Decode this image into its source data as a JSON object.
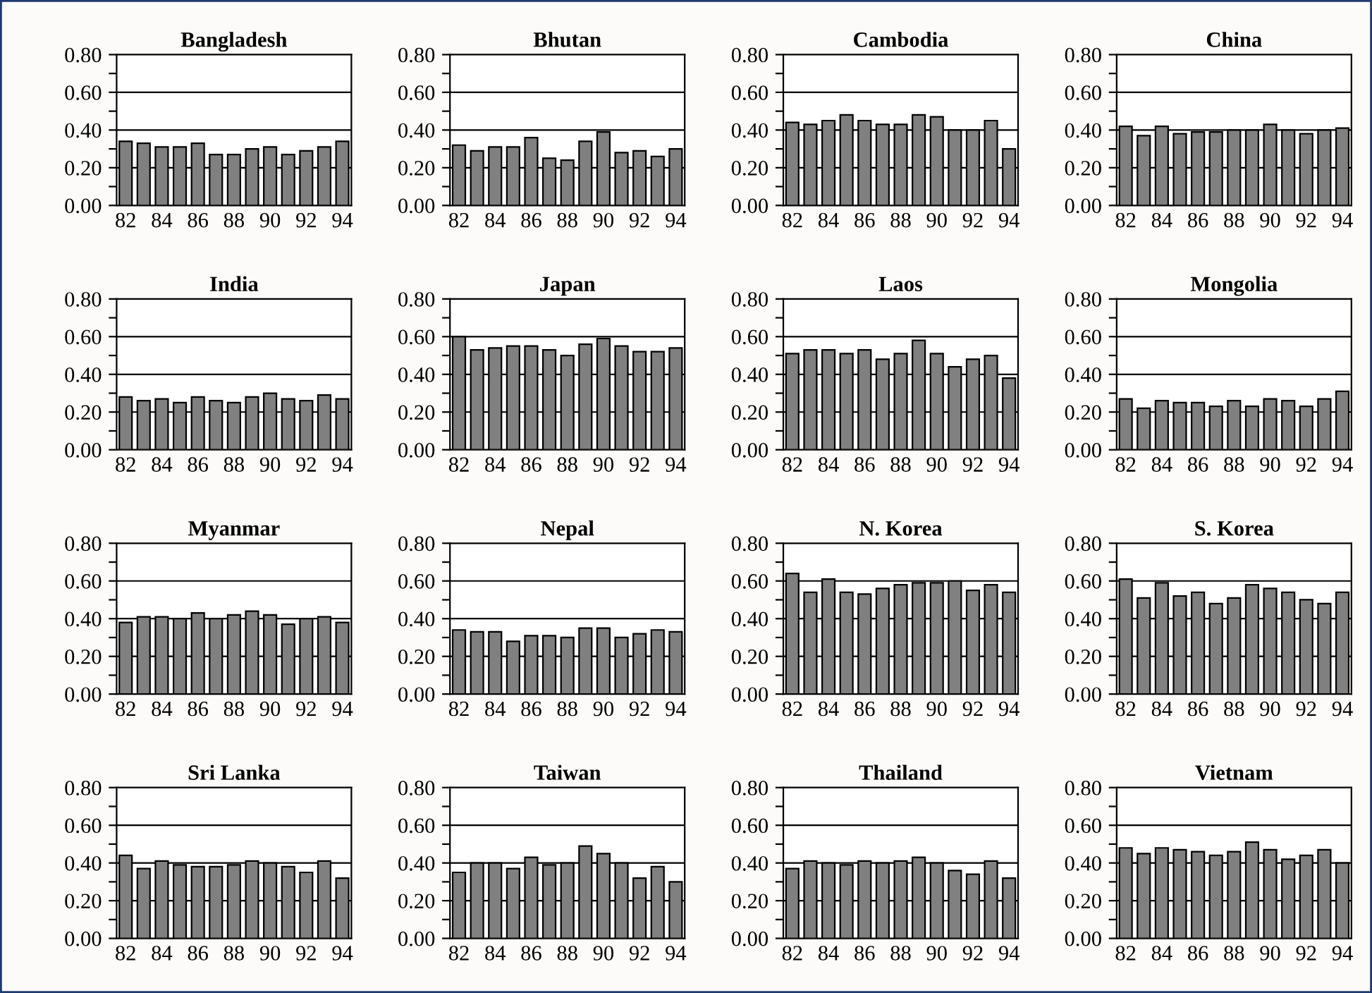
{
  "chart_data": [
    {
      "type": "bar",
      "title": "Bangladesh",
      "categories": [
        "82",
        null,
        "84",
        null,
        "86",
        null,
        "88",
        null,
        "90",
        null,
        "92",
        null,
        "94"
      ],
      "values": [
        0.34,
        0.33,
        0.31,
        0.31,
        0.33,
        0.27,
        0.27,
        0.3,
        0.31,
        0.27,
        0.29,
        0.31,
        0.34
      ],
      "color": "#808080",
      "ylim": [
        0,
        0.8
      ],
      "yticks": [
        {
          "value": 0,
          "label": "0.00"
        },
        {
          "value": 0.1,
          "label": null
        },
        {
          "value": 0.2,
          "label": "0.20"
        },
        {
          "value": 0.3,
          "label": null
        },
        {
          "value": 0.4,
          "label": "0.40"
        },
        {
          "value": 0.5,
          "label": null
        },
        {
          "value": 0.6,
          "label": "0.60"
        },
        {
          "value": 0.7,
          "label": null
        },
        {
          "value": 0.8,
          "label": "0.80"
        }
      ],
      "grid": "y"
    },
    {
      "type": "bar",
      "title": "Bhutan",
      "categories": [
        "82",
        null,
        "84",
        null,
        "86",
        null,
        "88",
        null,
        "90",
        null,
        "92",
        null,
        "94"
      ],
      "values": [
        0.32,
        0.29,
        0.31,
        0.31,
        0.36,
        0.25,
        0.24,
        0.34,
        0.39,
        0.28,
        0.29,
        0.26,
        0.3
      ],
      "color": "#808080",
      "ylim": [
        0,
        0.8
      ],
      "yticks": [
        {
          "value": 0,
          "label": "0.00"
        },
        {
          "value": 0.1,
          "label": null
        },
        {
          "value": 0.2,
          "label": "0.20"
        },
        {
          "value": 0.3,
          "label": null
        },
        {
          "value": 0.4,
          "label": "0.40"
        },
        {
          "value": 0.5,
          "label": null
        },
        {
          "value": 0.6,
          "label": "0.60"
        },
        {
          "value": 0.7,
          "label": null
        },
        {
          "value": 0.8,
          "label": "0.80"
        }
      ],
      "grid": "y"
    },
    {
      "type": "bar",
      "title": "Cambodia",
      "categories": [
        "82",
        null,
        "84",
        null,
        "86",
        null,
        "88",
        null,
        "90",
        null,
        "92",
        null,
        "94"
      ],
      "values": [
        0.44,
        0.43,
        0.45,
        0.48,
        0.45,
        0.43,
        0.43,
        0.48,
        0.47,
        0.4,
        0.4,
        0.45,
        0.3
      ],
      "color": "#808080",
      "ylim": [
        0,
        0.8
      ],
      "yticks": [
        {
          "value": 0,
          "label": "0.00"
        },
        {
          "value": 0.1,
          "label": null
        },
        {
          "value": 0.2,
          "label": "0.20"
        },
        {
          "value": 0.3,
          "label": null
        },
        {
          "value": 0.4,
          "label": "0.40"
        },
        {
          "value": 0.5,
          "label": null
        },
        {
          "value": 0.6,
          "label": "0.60"
        },
        {
          "value": 0.7,
          "label": null
        },
        {
          "value": 0.8,
          "label": "0.80"
        }
      ],
      "grid": "y"
    },
    {
      "type": "bar",
      "title": "China",
      "categories": [
        "82",
        null,
        "84",
        null,
        "86",
        null,
        "88",
        null,
        "90",
        null,
        "92",
        null,
        "94"
      ],
      "values": [
        0.42,
        0.37,
        0.42,
        0.38,
        0.39,
        0.39,
        0.4,
        0.4,
        0.43,
        0.4,
        0.38,
        0.4,
        0.41
      ],
      "color": "#808080",
      "ylim": [
        0,
        0.8
      ],
      "yticks": [
        {
          "value": 0,
          "label": "0.00"
        },
        {
          "value": 0.1,
          "label": null
        },
        {
          "value": 0.2,
          "label": "0.20"
        },
        {
          "value": 0.3,
          "label": null
        },
        {
          "value": 0.4,
          "label": "0.40"
        },
        {
          "value": 0.5,
          "label": null
        },
        {
          "value": 0.6,
          "label": "0.60"
        },
        {
          "value": 0.7,
          "label": null
        },
        {
          "value": 0.8,
          "label": "0.80"
        }
      ],
      "grid": "y"
    },
    {
      "type": "bar",
      "title": "India",
      "categories": [
        "82",
        null,
        "84",
        null,
        "86",
        null,
        "88",
        null,
        "90",
        null,
        "92",
        null,
        "94"
      ],
      "values": [
        0.28,
        0.26,
        0.27,
        0.25,
        0.28,
        0.26,
        0.25,
        0.28,
        0.3,
        0.27,
        0.26,
        0.29,
        0.27
      ],
      "color": "#808080",
      "ylim": [
        0,
        0.8
      ],
      "yticks": [
        {
          "value": 0,
          "label": "0.00"
        },
        {
          "value": 0.1,
          "label": null
        },
        {
          "value": 0.2,
          "label": "0.20"
        },
        {
          "value": 0.3,
          "label": null
        },
        {
          "value": 0.4,
          "label": "0.40"
        },
        {
          "value": 0.5,
          "label": null
        },
        {
          "value": 0.6,
          "label": "0.60"
        },
        {
          "value": 0.7,
          "label": null
        },
        {
          "value": 0.8,
          "label": "0.80"
        }
      ],
      "grid": "y"
    },
    {
      "type": "bar",
      "title": "Japan",
      "categories": [
        "82",
        null,
        "84",
        null,
        "86",
        null,
        "88",
        null,
        "90",
        null,
        "92",
        null,
        "94"
      ],
      "values": [
        0.6,
        0.53,
        0.54,
        0.55,
        0.55,
        0.53,
        0.5,
        0.56,
        0.59,
        0.55,
        0.52,
        0.52,
        0.54
      ],
      "color": "#808080",
      "ylim": [
        0,
        0.8
      ],
      "yticks": [
        {
          "value": 0,
          "label": "0.00"
        },
        {
          "value": 0.1,
          "label": null
        },
        {
          "value": 0.2,
          "label": "0.20"
        },
        {
          "value": 0.3,
          "label": null
        },
        {
          "value": 0.4,
          "label": "0.40"
        },
        {
          "value": 0.5,
          "label": null
        },
        {
          "value": 0.6,
          "label": "0.60"
        },
        {
          "value": 0.7,
          "label": null
        },
        {
          "value": 0.8,
          "label": "0.80"
        }
      ],
      "grid": "y"
    },
    {
      "type": "bar",
      "title": "Laos",
      "categories": [
        "82",
        null,
        "84",
        null,
        "86",
        null,
        "88",
        null,
        "90",
        null,
        "92",
        null,
        "94"
      ],
      "values": [
        0.51,
        0.53,
        0.53,
        0.51,
        0.53,
        0.48,
        0.51,
        0.58,
        0.51,
        0.44,
        0.48,
        0.5,
        0.38
      ],
      "color": "#808080",
      "ylim": [
        0,
        0.8
      ],
      "yticks": [
        {
          "value": 0,
          "label": "0.00"
        },
        {
          "value": 0.1,
          "label": null
        },
        {
          "value": 0.2,
          "label": "0.20"
        },
        {
          "value": 0.3,
          "label": null
        },
        {
          "value": 0.4,
          "label": "0.40"
        },
        {
          "value": 0.5,
          "label": null
        },
        {
          "value": 0.6,
          "label": "0.60"
        },
        {
          "value": 0.7,
          "label": null
        },
        {
          "value": 0.8,
          "label": "0.80"
        }
      ],
      "grid": "y"
    },
    {
      "type": "bar",
      "title": "Mongolia",
      "categories": [
        "82",
        null,
        "84",
        null,
        "86",
        null,
        "88",
        null,
        "90",
        null,
        "92",
        null,
        "94"
      ],
      "values": [
        0.27,
        0.22,
        0.26,
        0.25,
        0.25,
        0.23,
        0.26,
        0.23,
        0.27,
        0.26,
        0.23,
        0.27,
        0.31
      ],
      "color": "#808080",
      "ylim": [
        0,
        0.8
      ],
      "yticks": [
        {
          "value": 0,
          "label": "0.00"
        },
        {
          "value": 0.1,
          "label": null
        },
        {
          "value": 0.2,
          "label": "0.20"
        },
        {
          "value": 0.3,
          "label": null
        },
        {
          "value": 0.4,
          "label": "0.40"
        },
        {
          "value": 0.5,
          "label": null
        },
        {
          "value": 0.6,
          "label": "0.60"
        },
        {
          "value": 0.7,
          "label": null
        },
        {
          "value": 0.8,
          "label": "0.80"
        }
      ],
      "grid": "y"
    },
    {
      "type": "bar",
      "title": "Myanmar",
      "categories": [
        "82",
        null,
        "84",
        null,
        "86",
        null,
        "88",
        null,
        "90",
        null,
        "92",
        null,
        "94"
      ],
      "values": [
        0.38,
        0.41,
        0.41,
        0.4,
        0.43,
        0.4,
        0.42,
        0.44,
        0.42,
        0.37,
        0.4,
        0.41,
        0.38
      ],
      "color": "#808080",
      "ylim": [
        0,
        0.8
      ],
      "yticks": [
        {
          "value": 0,
          "label": "0.00"
        },
        {
          "value": 0.1,
          "label": null
        },
        {
          "value": 0.2,
          "label": "0.20"
        },
        {
          "value": 0.3,
          "label": null
        },
        {
          "value": 0.4,
          "label": "0.40"
        },
        {
          "value": 0.5,
          "label": null
        },
        {
          "value": 0.6,
          "label": "0.60"
        },
        {
          "value": 0.7,
          "label": null
        },
        {
          "value": 0.8,
          "label": "0.80"
        }
      ],
      "grid": "y"
    },
    {
      "type": "bar",
      "title": "Nepal",
      "categories": [
        "82",
        null,
        "84",
        null,
        "86",
        null,
        "88",
        null,
        "90",
        null,
        "92",
        null,
        "94"
      ],
      "values": [
        0.34,
        0.33,
        0.33,
        0.28,
        0.31,
        0.31,
        0.3,
        0.35,
        0.35,
        0.3,
        0.32,
        0.34,
        0.33
      ],
      "color": "#808080",
      "ylim": [
        0,
        0.8
      ],
      "yticks": [
        {
          "value": 0,
          "label": "0.00"
        },
        {
          "value": 0.1,
          "label": null
        },
        {
          "value": 0.2,
          "label": "0.20"
        },
        {
          "value": 0.3,
          "label": null
        },
        {
          "value": 0.4,
          "label": "0.40"
        },
        {
          "value": 0.5,
          "label": null
        },
        {
          "value": 0.6,
          "label": "0.60"
        },
        {
          "value": 0.7,
          "label": null
        },
        {
          "value": 0.8,
          "label": "0.80"
        }
      ],
      "grid": "y"
    },
    {
      "type": "bar",
      "title": "N. Korea",
      "categories": [
        "82",
        null,
        "84",
        null,
        "86",
        null,
        "88",
        null,
        "90",
        null,
        "92",
        null,
        "94"
      ],
      "values": [
        0.64,
        0.54,
        0.61,
        0.54,
        0.53,
        0.56,
        0.58,
        0.59,
        0.59,
        0.6,
        0.55,
        0.58,
        0.54
      ],
      "color": "#808080",
      "ylim": [
        0,
        0.8
      ],
      "yticks": [
        {
          "value": 0,
          "label": "0.00"
        },
        {
          "value": 0.1,
          "label": null
        },
        {
          "value": 0.2,
          "label": "0.20"
        },
        {
          "value": 0.3,
          "label": null
        },
        {
          "value": 0.4,
          "label": "0.40"
        },
        {
          "value": 0.5,
          "label": null
        },
        {
          "value": 0.6,
          "label": "0.60"
        },
        {
          "value": 0.7,
          "label": null
        },
        {
          "value": 0.8,
          "label": "0.80"
        }
      ],
      "grid": "y"
    },
    {
      "type": "bar",
      "title": "S. Korea",
      "categories": [
        "82",
        null,
        "84",
        null,
        "86",
        null,
        "88",
        null,
        "90",
        null,
        "92",
        null,
        "94"
      ],
      "values": [
        0.61,
        0.51,
        0.59,
        0.52,
        0.54,
        0.48,
        0.51,
        0.58,
        0.56,
        0.54,
        0.5,
        0.48,
        0.54
      ],
      "color": "#808080",
      "ylim": [
        0,
        0.8
      ],
      "yticks": [
        {
          "value": 0,
          "label": "0.00"
        },
        {
          "value": 0.1,
          "label": null
        },
        {
          "value": 0.2,
          "label": "0.20"
        },
        {
          "value": 0.3,
          "label": null
        },
        {
          "value": 0.4,
          "label": "0.40"
        },
        {
          "value": 0.5,
          "label": null
        },
        {
          "value": 0.6,
          "label": "0.60"
        },
        {
          "value": 0.7,
          "label": null
        },
        {
          "value": 0.8,
          "label": "0.80"
        }
      ],
      "grid": "y"
    },
    {
      "type": "bar",
      "title": "Sri Lanka",
      "categories": [
        "82",
        null,
        "84",
        null,
        "86",
        null,
        "88",
        null,
        "90",
        null,
        "92",
        null,
        "94"
      ],
      "values": [
        0.44,
        0.37,
        0.41,
        0.39,
        0.38,
        0.38,
        0.39,
        0.41,
        0.4,
        0.38,
        0.35,
        0.41,
        0.32
      ],
      "color": "#808080",
      "ylim": [
        0,
        0.8
      ],
      "yticks": [
        {
          "value": 0,
          "label": "0.00"
        },
        {
          "value": 0.1,
          "label": null
        },
        {
          "value": 0.2,
          "label": "0.20"
        },
        {
          "value": 0.3,
          "label": null
        },
        {
          "value": 0.4,
          "label": "0.40"
        },
        {
          "value": 0.5,
          "label": null
        },
        {
          "value": 0.6,
          "label": "0.60"
        },
        {
          "value": 0.7,
          "label": null
        },
        {
          "value": 0.8,
          "label": "0.80"
        }
      ],
      "grid": "y"
    },
    {
      "type": "bar",
      "title": "Taiwan",
      "categories": [
        "82",
        null,
        "84",
        null,
        "86",
        null,
        "88",
        null,
        "90",
        null,
        "92",
        null,
        "94"
      ],
      "values": [
        0.35,
        0.4,
        0.4,
        0.37,
        0.43,
        0.39,
        0.4,
        0.49,
        0.45,
        0.4,
        0.32,
        0.38,
        0.3
      ],
      "color": "#808080",
      "ylim": [
        0,
        0.8
      ],
      "yticks": [
        {
          "value": 0,
          "label": "0.00"
        },
        {
          "value": 0.1,
          "label": null
        },
        {
          "value": 0.2,
          "label": "0.20"
        },
        {
          "value": 0.3,
          "label": null
        },
        {
          "value": 0.4,
          "label": "0.40"
        },
        {
          "value": 0.5,
          "label": null
        },
        {
          "value": 0.6,
          "label": "0.60"
        },
        {
          "value": 0.7,
          "label": null
        },
        {
          "value": 0.8,
          "label": "0.80"
        }
      ],
      "grid": "y"
    },
    {
      "type": "bar",
      "title": "Thailand",
      "categories": [
        "82",
        null,
        "84",
        null,
        "86",
        null,
        "88",
        null,
        "90",
        null,
        "92",
        null,
        "94"
      ],
      "values": [
        0.37,
        0.41,
        0.4,
        0.39,
        0.41,
        0.4,
        0.41,
        0.43,
        0.4,
        0.36,
        0.34,
        0.41,
        0.32
      ],
      "color": "#808080",
      "ylim": [
        0,
        0.8
      ],
      "yticks": [
        {
          "value": 0,
          "label": "0.00"
        },
        {
          "value": 0.1,
          "label": null
        },
        {
          "value": 0.2,
          "label": "0.20"
        },
        {
          "value": 0.3,
          "label": null
        },
        {
          "value": 0.4,
          "label": "0.40"
        },
        {
          "value": 0.5,
          "label": null
        },
        {
          "value": 0.6,
          "label": "0.60"
        },
        {
          "value": 0.7,
          "label": null
        },
        {
          "value": 0.8,
          "label": "0.80"
        }
      ],
      "grid": "y"
    },
    {
      "type": "bar",
      "title": "Vietnam",
      "categories": [
        "82",
        null,
        "84",
        null,
        "86",
        null,
        "88",
        null,
        "90",
        null,
        "92",
        null,
        "94"
      ],
      "values": [
        0.48,
        0.45,
        0.48,
        0.47,
        0.46,
        0.44,
        0.46,
        0.51,
        0.47,
        0.42,
        0.44,
        0.47,
        0.4
      ],
      "color": "#808080",
      "ylim": [
        0,
        0.8
      ],
      "yticks": [
        {
          "value": 0,
          "label": "0.00"
        },
        {
          "value": 0.1,
          "label": null
        },
        {
          "value": 0.2,
          "label": "0.20"
        },
        {
          "value": 0.3,
          "label": null
        },
        {
          "value": 0.4,
          "label": "0.40"
        },
        {
          "value": 0.5,
          "label": null
        },
        {
          "value": 0.6,
          "label": "0.60"
        },
        {
          "value": 0.7,
          "label": null
        },
        {
          "value": 0.8,
          "label": "0.80"
        }
      ],
      "grid": "y"
    }
  ]
}
